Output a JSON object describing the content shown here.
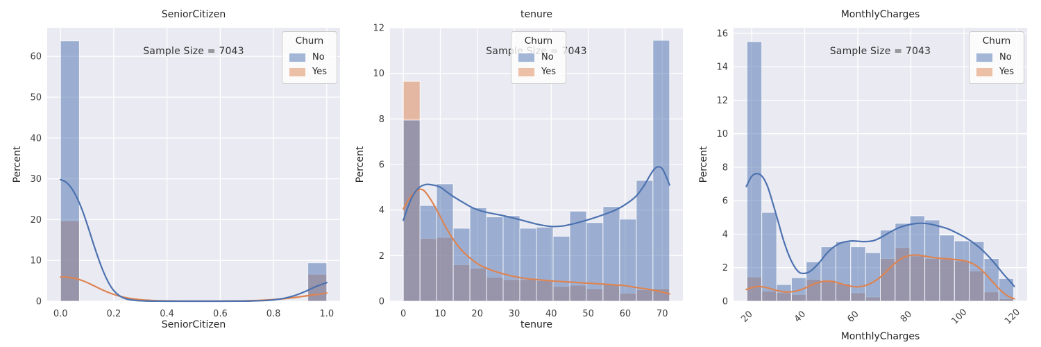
{
  "figure": {
    "annotation": "Sample Size = 7043",
    "legend_title": "Churn",
    "hue_label": "Churn",
    "series_names": [
      "No",
      "Yes"
    ],
    "colors": {
      "no_fill": "rgba(76,114,176,0.5)",
      "yes_fill": "rgba(221,132,82,0.5)",
      "no_line": "#4c72b0",
      "yes_line": "#dd8452",
      "axes_background": "#eaeaf2",
      "grid": "#ffffff",
      "text": "#262626",
      "tick_text": "#3f3f3f"
    }
  },
  "chart_data": [
    {
      "type": "bar",
      "subtype": "histogram-with-kde",
      "title": "SeniorCitizen",
      "xlabel": "SeniorCitizen",
      "ylabel": "Percent",
      "annotation": "Sample Size = 7043",
      "legend": {
        "title": "Churn",
        "entries": [
          "No",
          "Yes"
        ],
        "position": "upper-right"
      },
      "grid": true,
      "xlim": [
        -0.05,
        1.05
      ],
      "ylim": [
        0,
        67
      ],
      "x_ticks": [
        0.0,
        0.2,
        0.4,
        0.6,
        0.8,
        1.0
      ],
      "x_tick_labels": [
        "0.0",
        "0.2",
        "0.4",
        "0.6",
        "0.8",
        "1.0"
      ],
      "x_tick_rotation": 0,
      "y_ticks": [
        0,
        10,
        20,
        30,
        40,
        50,
        60
      ],
      "y_tick_labels": [
        "0",
        "10",
        "20",
        "30",
        "40",
        "50",
        "60"
      ],
      "bin_edges": [
        0,
        0.071,
        0.143,
        0.214,
        0.286,
        0.357,
        0.429,
        0.5,
        0.571,
        0.643,
        0.714,
        0.786,
        0.857,
        0.929,
        1.0
      ],
      "series": [
        {
          "name": "No",
          "values": [
            63.8,
            0,
            0,
            0,
            0,
            0,
            0,
            0,
            0,
            0,
            0,
            0,
            0,
            9.4
          ]
        },
        {
          "name": "Yes",
          "values": [
            19.7,
            0,
            0,
            0,
            0,
            0,
            0,
            0,
            0,
            0,
            0,
            0,
            0,
            6.6
          ]
        }
      ],
      "kde": {
        "No": [
          [
            0,
            29.8
          ],
          [
            0.02,
            29.2
          ],
          [
            0.04,
            27.8
          ],
          [
            0.06,
            25.6
          ],
          [
            0.08,
            22.6
          ],
          [
            0.1,
            18.9
          ],
          [
            0.12,
            14.8
          ],
          [
            0.14,
            10.9
          ],
          [
            0.16,
            7.4
          ],
          [
            0.18,
            4.6
          ],
          [
            0.2,
            2.6
          ],
          [
            0.22,
            1.4
          ],
          [
            0.24,
            0.7
          ],
          [
            0.26,
            0.35
          ],
          [
            0.3,
            0.1
          ],
          [
            0.35,
            0.02
          ],
          [
            0.45,
            0
          ],
          [
            0.6,
            0
          ],
          [
            0.68,
            0.02
          ],
          [
            0.72,
            0.06
          ],
          [
            0.76,
            0.14
          ],
          [
            0.8,
            0.32
          ],
          [
            0.84,
            0.72
          ],
          [
            0.88,
            1.4
          ],
          [
            0.92,
            2.4
          ],
          [
            0.96,
            3.6
          ],
          [
            1.0,
            4.55
          ]
        ],
        "Yes": [
          [
            0,
            5.9
          ],
          [
            0.03,
            5.85
          ],
          [
            0.06,
            5.5
          ],
          [
            0.09,
            4.85
          ],
          [
            0.12,
            3.95
          ],
          [
            0.15,
            3.0
          ],
          [
            0.18,
            2.15
          ],
          [
            0.21,
            1.45
          ],
          [
            0.24,
            0.95
          ],
          [
            0.27,
            0.6
          ],
          [
            0.3,
            0.38
          ],
          [
            0.34,
            0.2
          ],
          [
            0.38,
            0.1
          ],
          [
            0.45,
            0.03
          ],
          [
            0.55,
            0.02
          ],
          [
            0.65,
            0.06
          ],
          [
            0.7,
            0.12
          ],
          [
            0.75,
            0.22
          ],
          [
            0.8,
            0.4
          ],
          [
            0.85,
            0.68
          ],
          [
            0.9,
            1.08
          ],
          [
            0.95,
            1.55
          ],
          [
            1.0,
            2.0
          ]
        ]
      }
    },
    {
      "type": "bar",
      "subtype": "histogram-with-kde",
      "title": "tenure",
      "xlabel": "tenure",
      "ylabel": "Percent",
      "annotation": "Sample Size = 7043",
      "legend": {
        "title": "Churn",
        "entries": [
          "No",
          "Yes"
        ],
        "position": "upper-center"
      },
      "grid": true,
      "xlim": [
        -3.6,
        75.6
      ],
      "ylim": [
        0,
        12
      ],
      "x_ticks": [
        0,
        10,
        20,
        30,
        40,
        50,
        60,
        70
      ],
      "x_tick_labels": [
        "0",
        "10",
        "20",
        "30",
        "40",
        "50",
        "60",
        "70"
      ],
      "x_tick_rotation": 0,
      "y_ticks": [
        0,
        2,
        4,
        6,
        8,
        10,
        12
      ],
      "y_tick_labels": [
        "0",
        "2",
        "4",
        "6",
        "8",
        "10",
        "12"
      ],
      "bin_edges": [
        0,
        4.5,
        9,
        13.5,
        18,
        22.5,
        27,
        31.5,
        36,
        40.5,
        45,
        49.5,
        54,
        58.5,
        63,
        67.5,
        72
      ],
      "series": [
        {
          "name": "No",
          "values": [
            7.95,
            4.2,
            5.15,
            3.2,
            4.1,
            3.7,
            3.75,
            3.2,
            3.25,
            2.85,
            3.95,
            3.45,
            4.15,
            3.6,
            5.3,
            11.45
          ]
        },
        {
          "name": "Yes",
          "values": [
            9.65,
            2.75,
            2.8,
            1.6,
            1.45,
            1.05,
            0.95,
            0.95,
            0.9,
            0.65,
            0.7,
            0.55,
            0.75,
            0.35,
            0.5,
            0.55
          ]
        }
      ],
      "kde": {
        "No": [
          [
            0,
            3.55
          ],
          [
            2,
            4.45
          ],
          [
            4,
            4.95
          ],
          [
            6,
            5.12
          ],
          [
            8,
            5.1
          ],
          [
            10,
            5.0
          ],
          [
            13,
            4.65
          ],
          [
            16,
            4.35
          ],
          [
            19,
            4.08
          ],
          [
            22,
            3.92
          ],
          [
            25,
            3.82
          ],
          [
            28,
            3.72
          ],
          [
            31,
            3.6
          ],
          [
            34,
            3.47
          ],
          [
            37,
            3.35
          ],
          [
            40,
            3.28
          ],
          [
            43,
            3.3
          ],
          [
            46,
            3.4
          ],
          [
            49,
            3.53
          ],
          [
            52,
            3.68
          ],
          [
            55,
            3.85
          ],
          [
            58,
            4.05
          ],
          [
            61,
            4.35
          ],
          [
            63,
            4.62
          ],
          [
            65,
            5.05
          ],
          [
            67,
            5.6
          ],
          [
            68,
            5.82
          ],
          [
            69,
            5.9
          ],
          [
            70,
            5.82
          ],
          [
            71,
            5.5
          ],
          [
            72,
            5.1
          ]
        ],
        "Yes": [
          [
            0,
            4.05
          ],
          [
            2,
            4.6
          ],
          [
            4,
            4.88
          ],
          [
            5,
            4.9
          ],
          [
            6,
            4.78
          ],
          [
            8,
            4.3
          ],
          [
            10,
            3.7
          ],
          [
            12,
            3.1
          ],
          [
            14,
            2.6
          ],
          [
            16,
            2.2
          ],
          [
            18,
            1.9
          ],
          [
            20,
            1.65
          ],
          [
            22,
            1.48
          ],
          [
            24,
            1.35
          ],
          [
            27,
            1.2
          ],
          [
            30,
            1.08
          ],
          [
            33,
            1.0
          ],
          [
            36,
            0.95
          ],
          [
            40,
            0.89
          ],
          [
            44,
            0.85
          ],
          [
            48,
            0.81
          ],
          [
            52,
            0.77
          ],
          [
            56,
            0.73
          ],
          [
            60,
            0.68
          ],
          [
            63,
            0.6
          ],
          [
            66,
            0.53
          ],
          [
            69,
            0.44
          ],
          [
            72,
            0.32
          ]
        ]
      }
    },
    {
      "type": "bar",
      "subtype": "histogram-with-kde",
      "title": "MonthlyCharges",
      "xlabel": "MonthlyCharges",
      "ylabel": "Percent",
      "annotation": "Sample Size = 7043",
      "legend": {
        "title": "Churn",
        "entries": [
          "No",
          "Yes"
        ],
        "position": "upper-right"
      },
      "grid": true,
      "xlim": [
        13.2,
        123.8
      ],
      "ylim": [
        0,
        16.33
      ],
      "x_ticks": [
        20,
        40,
        60,
        80,
        100,
        120
      ],
      "x_tick_labels": [
        "20",
        "40",
        "60",
        "80",
        "100",
        "120"
      ],
      "x_tick_rotation": 45,
      "y_ticks": [
        0,
        2,
        4,
        6,
        8,
        10,
        12,
        14,
        16
      ],
      "y_tick_labels": [
        "0",
        "2",
        "4",
        "6",
        "8",
        "10",
        "12",
        "14",
        "16"
      ],
      "bin_edges": [
        18.25,
        23.83,
        29.42,
        35.0,
        40.58,
        46.17,
        51.75,
        57.33,
        62.92,
        68.5,
        74.08,
        79.67,
        85.25,
        90.83,
        96.42,
        102.0,
        107.58,
        113.17,
        118.75
      ],
      "series": [
        {
          "name": "No",
          "values": [
            15.5,
            5.3,
            1.0,
            1.4,
            2.35,
            3.25,
            3.55,
            3.25,
            2.9,
            4.25,
            4.65,
            5.1,
            4.85,
            3.95,
            3.6,
            3.55,
            2.55,
            1.35
          ]
        },
        {
          "name": "Yes",
          "values": [
            1.45,
            0.6,
            0.5,
            0.4,
            1.3,
            1.25,
            1.05,
            0.5,
            0.25,
            2.55,
            3.2,
            2.7,
            2.55,
            2.5,
            2.4,
            1.8,
            0.55,
            0.15
          ]
        }
      ],
      "kde": {
        "No": [
          [
            18,
            6.85
          ],
          [
            20,
            7.45
          ],
          [
            22,
            7.62
          ],
          [
            24,
            7.45
          ],
          [
            26,
            6.85
          ],
          [
            28,
            5.85
          ],
          [
            30,
            4.75
          ],
          [
            32,
            3.65
          ],
          [
            34,
            2.75
          ],
          [
            36,
            2.1
          ],
          [
            38,
            1.72
          ],
          [
            40,
            1.66
          ],
          [
            42,
            1.78
          ],
          [
            44,
            2.05
          ],
          [
            46,
            2.4
          ],
          [
            48,
            2.8
          ],
          [
            50,
            3.12
          ],
          [
            52,
            3.35
          ],
          [
            54,
            3.5
          ],
          [
            56,
            3.57
          ],
          [
            58,
            3.6
          ],
          [
            60,
            3.58
          ],
          [
            62,
            3.56
          ],
          [
            64,
            3.57
          ],
          [
            66,
            3.62
          ],
          [
            68,
            3.75
          ],
          [
            70,
            3.92
          ],
          [
            73,
            4.2
          ],
          [
            76,
            4.42
          ],
          [
            79,
            4.56
          ],
          [
            82,
            4.64
          ],
          [
            85,
            4.65
          ],
          [
            88,
            4.58
          ],
          [
            91,
            4.46
          ],
          [
            94,
            4.32
          ],
          [
            97,
            4.1
          ],
          [
            100,
            3.85
          ],
          [
            103,
            3.55
          ],
          [
            106,
            3.18
          ],
          [
            109,
            2.72
          ],
          [
            112,
            2.18
          ],
          [
            115,
            1.6
          ],
          [
            117,
            1.25
          ],
          [
            119,
            0.88
          ]
        ],
        "Yes": [
          [
            18,
            0.7
          ],
          [
            20,
            0.8
          ],
          [
            22,
            0.88
          ],
          [
            24,
            0.86
          ],
          [
            26,
            0.8
          ],
          [
            28,
            0.7
          ],
          [
            30,
            0.62
          ],
          [
            32,
            0.56
          ],
          [
            34,
            0.55
          ],
          [
            36,
            0.58
          ],
          [
            38,
            0.66
          ],
          [
            40,
            0.78
          ],
          [
            42,
            0.92
          ],
          [
            44,
            1.06
          ],
          [
            46,
            1.15
          ],
          [
            48,
            1.2
          ],
          [
            50,
            1.18
          ],
          [
            52,
            1.12
          ],
          [
            54,
            1.03
          ],
          [
            56,
            0.94
          ],
          [
            58,
            0.88
          ],
          [
            60,
            0.86
          ],
          [
            62,
            0.9
          ],
          [
            64,
            1.0
          ],
          [
            66,
            1.16
          ],
          [
            68,
            1.38
          ],
          [
            70,
            1.66
          ],
          [
            72,
            1.96
          ],
          [
            74,
            2.26
          ],
          [
            76,
            2.5
          ],
          [
            78,
            2.66
          ],
          [
            80,
            2.74
          ],
          [
            82,
            2.76
          ],
          [
            84,
            2.72
          ],
          [
            86,
            2.67
          ],
          [
            88,
            2.62
          ],
          [
            90,
            2.58
          ],
          [
            92,
            2.55
          ],
          [
            94,
            2.53
          ],
          [
            96,
            2.5
          ],
          [
            98,
            2.46
          ],
          [
            100,
            2.42
          ],
          [
            102,
            2.33
          ],
          [
            104,
            2.18
          ],
          [
            106,
            1.95
          ],
          [
            108,
            1.65
          ],
          [
            110,
            1.3
          ],
          [
            112,
            0.95
          ],
          [
            114,
            0.62
          ],
          [
            116,
            0.36
          ],
          [
            118,
            0.2
          ],
          [
            119,
            0.15
          ]
        ]
      }
    }
  ]
}
